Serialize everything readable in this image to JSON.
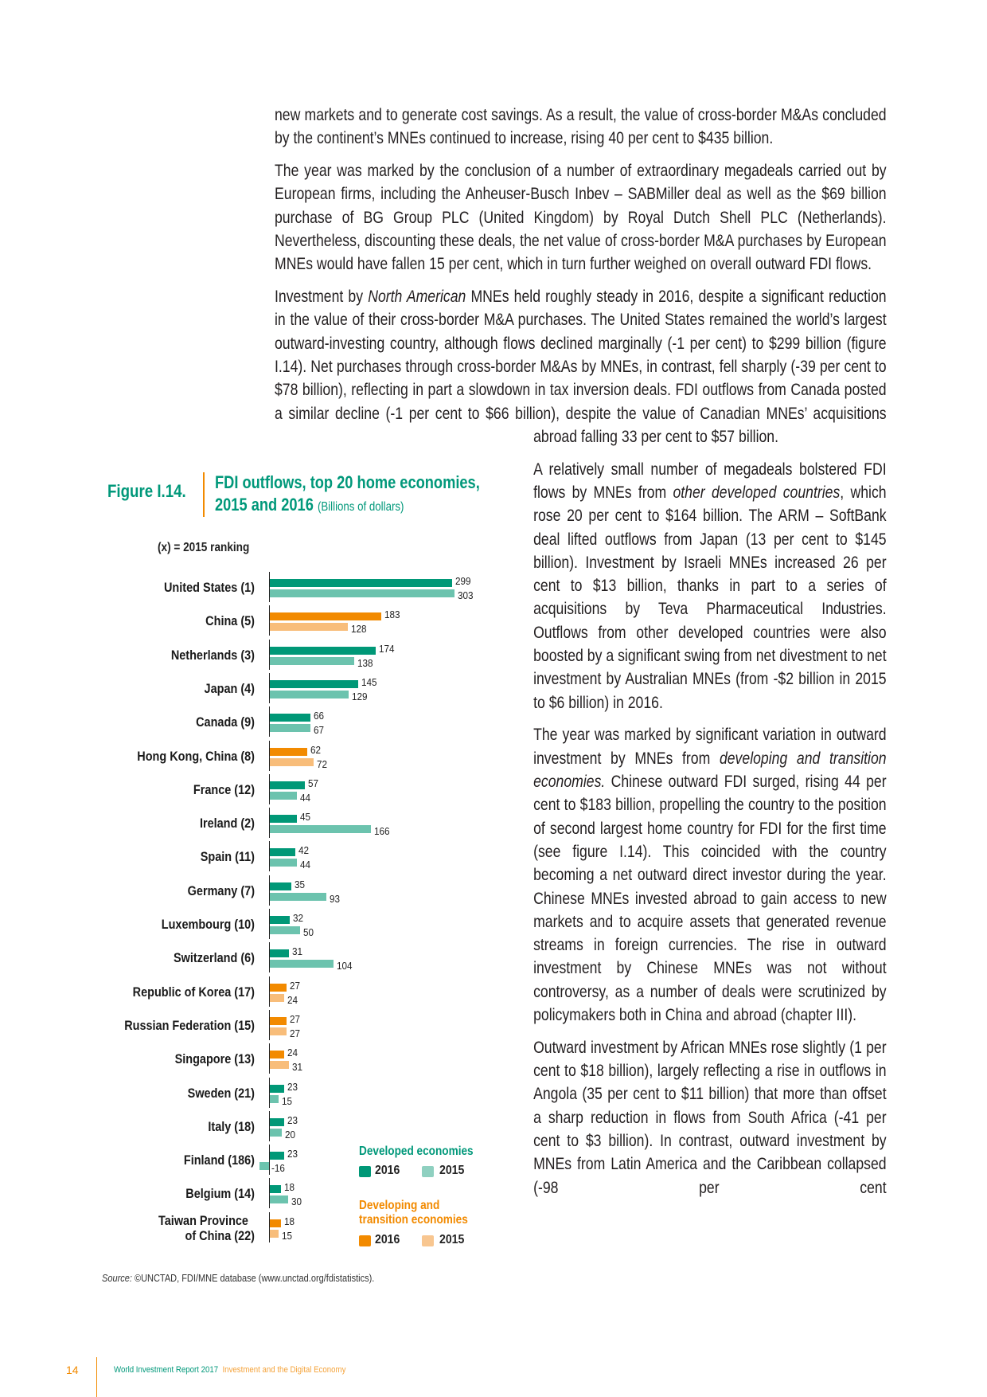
{
  "body": {
    "paragraphs": [
      {
        "pre": "new markets and to generate cost savings. As a result, the value of cross-border M&As concluded by the continent’s MNEs continued to increase, rising 40 per cent to $435 billion.",
        "em": "",
        "post": ""
      },
      {
        "pre": "The year was marked by the conclusion of a number of extraordinary megadeals carried out by European firms, including the Anheuser-Busch Inbev – SABMiller deal as well as the $69 billion purchase of BG Group PLC (United Kingdom) by Royal Dutch Shell PLC (Netherlands). Nevertheless, discounting these deals, the net value of cross-border M&A purchases by European MNEs would have fallen 15 per cent, which in turn further weighed on overall outward FDI flows.",
        "em": "",
        "post": ""
      },
      {
        "pre": "Investment by ",
        "em": "North American",
        "post": " MNEs held roughly steady in 2016, despite a significant reduction in the value of their cross-border M&A purchases. The United States remained the world’s largest outward-investing country, although flows declined marginally (-1 per cent) to $299 billion (figure I.14). Net purchases through cross-border M&As by MNEs, in contrast, fell sharply (-39 per cent to $78 billion), reflecting in part a slowdown in tax inversion deals. FDI outflows from Canada posted a similar decline (-1 per cent to $66 billion), despite the value of Canadian MNEs’ acquisitions abroad falling 33 per cent to $57 billion."
      },
      {
        "pre": "A relatively small number of megadeals bolstered FDI flows by MNEs from ",
        "em": "other developed countries",
        "post": ", which rose 20 per cent to $164 billion. The ARM – SoftBank deal lifted outflows from Japan (13 per cent to $145 billion). Investment by Israeli MNEs increased 26 per cent to $13 billion, thanks in part to a series of acquisitions by Teva Pharmaceutical Industries. Outflows from other developed countries were also boosted by a significant swing from net divestment to net investment by Australian MNEs (from -$2 billion in 2015 to $6 billion) in 2016."
      },
      {
        "pre": "The year was marked by significant variation in outward investment by MNEs from ",
        "em": "developing and transition economies.",
        "post": " Chinese outward FDI surged, rising 44 per cent to $183 billion, propelling the country to the position of second largest home country for FDI for the first time (see figure I.14). This coincided with the country becoming a net outward direct investor during the year. Chinese MNEs invested abroad to gain access to new markets and to acquire assets that generated revenue streams in foreign currencies. The rise in outward investment by Chinese MNEs was not without controversy, as a number of deals were scrutinized by policymakers both in China and abroad (chapter III)."
      },
      {
        "pre": "Outward investment by African MNEs rose slightly (1 per cent to $18 billion), largely reflecting a rise in outflows in Angola (35 per cent to $11 billion) that  more than offset a sharp reduction in flows from South Africa (-41 per cent to $3 billion). In contrast, outward investment by MNEs from Latin America and the Caribbean collapsed (-98 per cent",
        "em": "",
        "post": ""
      }
    ]
  },
  "figure": {
    "label": "Figure I.14.",
    "title_line1": "FDI outflows, top 20 home economies,",
    "title_line2": "2015 and 2016",
    "unit": "(Billions of dollars)",
    "ranking_note": "(x) = 2015 ranking",
    "source_label": "Source:",
    "source_text": " ©UNCTAD, FDI/MNE database (www.unctad.org/fdistatistics)."
  },
  "chart_data": {
    "type": "bar",
    "orientation": "horizontal",
    "categories": [
      "United States (1)",
      "China (5)",
      "Netherlands (3)",
      "Japan (4)",
      "Canada (9)",
      "Hong Kong, China (8)",
      "France (12)",
      "Ireland (2)",
      "Spain (11)",
      "Germany (7)",
      "Luxembourg (10)",
      "Switzerland (6)",
      "Republic of Korea (17)",
      "Russian Federation (15)",
      "Singapore (13)",
      "Sweden (21)",
      "Italy (18)",
      "Finland (186)",
      "Belgium (14)",
      "Taiwan Province of China (22)"
    ],
    "group": [
      "developed",
      "developing",
      "developed",
      "developed",
      "developed",
      "developing",
      "developed",
      "developed",
      "developed",
      "developed",
      "developed",
      "developed",
      "developing",
      "developing",
      "developing",
      "developed",
      "developed",
      "developed",
      "developed",
      "developing"
    ],
    "series": [
      {
        "name": "2016",
        "values": [
          299,
          183,
          174,
          145,
          66,
          62,
          57,
          45,
          42,
          35,
          32,
          31,
          27,
          27,
          24,
          23,
          23,
          23,
          18,
          18
        ]
      },
      {
        "name": "2015",
        "values": [
          303,
          128,
          138,
          129,
          67,
          72,
          44,
          166,
          44,
          93,
          50,
          104,
          24,
          27,
          31,
          15,
          20,
          -16,
          30,
          15
        ]
      }
    ],
    "title": "FDI outflows, top 20 home economies, 2015 and 2016",
    "unit": "Billions of dollars",
    "grid": false,
    "legend_position": "bottom-right",
    "colors": {
      "developed_2016": "#009877",
      "developed_2015": "#6cc3ae",
      "developing_2016": "#f28a00",
      "developing_2015": "#f8bd7a"
    }
  },
  "legend": {
    "developed_title": "Developed economies",
    "developing_title_line1": "Developing and",
    "developing_title_line2": "transition economies",
    "y2016": "2016",
    "y2015": "2015"
  },
  "footer": {
    "page_number": "14",
    "report": "World Investment Report 2017",
    "subtitle": "Investment and the Digital Economy"
  }
}
